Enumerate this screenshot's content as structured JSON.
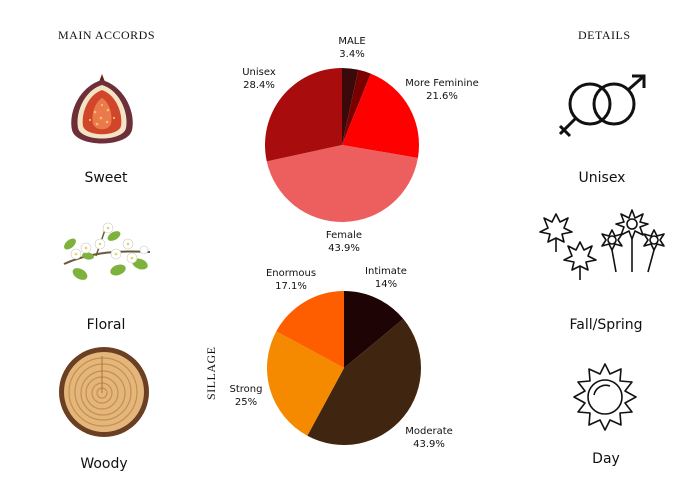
{
  "left_column": {
    "heading": "MAIN ACCORDS",
    "items": [
      {
        "label": "Sweet",
        "icon": "fig-icon"
      },
      {
        "label": "Floral",
        "icon": "flower-branch-icon"
      },
      {
        "label": "Woody",
        "icon": "wood-slice-icon"
      }
    ]
  },
  "right_column": {
    "heading": "DETAILS",
    "items": [
      {
        "label": "Unisex",
        "icon": "gender-symbols-icon"
      },
      {
        "label": "Fall/Spring",
        "icon": "leaves-and-flowers-icon"
      },
      {
        "label": "Day",
        "icon": "sun-icon"
      }
    ]
  },
  "sillage_label": "SILLAGE",
  "chart_data": [
    {
      "type": "pie",
      "title": "",
      "slices": [
        {
          "label": "MALE",
          "value": 3.4,
          "display": "3.4%",
          "color": "#3a0a0a"
        },
        {
          "label": "",
          "value": 2.7,
          "display": "",
          "color": "#7a0000"
        },
        {
          "label": "More Feminine",
          "value": 21.6,
          "display": "21.6%",
          "color": "#ff0000"
        },
        {
          "label": "Female",
          "value": 43.9,
          "display": "43.9%",
          "color": "#ed5f5f"
        },
        {
          "label": "Unisex",
          "value": 28.4,
          "display": "28.4%",
          "color": "#a80c0c"
        }
      ]
    },
    {
      "type": "pie",
      "title": "",
      "slices": [
        {
          "label": "Intimate",
          "value": 14,
          "display": "14%",
          "color": "#1e0404"
        },
        {
          "label": "Moderate",
          "value": 43.9,
          "display": "43.9%",
          "color": "#402510"
        },
        {
          "label": "Strong",
          "value": 25,
          "display": "25%",
          "color": "#f58a00"
        },
        {
          "label": "Enormous",
          "value": 17.1,
          "display": "17.1%",
          "color": "#ff5e00"
        }
      ]
    }
  ]
}
